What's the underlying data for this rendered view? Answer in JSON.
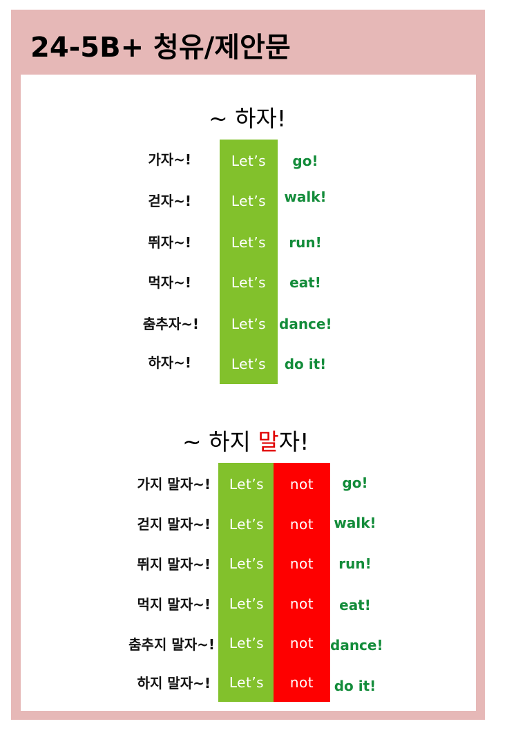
{
  "title": "24-5B+ 청유/제안문",
  "section1": {
    "heading": "~ 하자!",
    "rows": [
      {
        "ko": "가자~!",
        "lets": "Let’s",
        "en": "go!"
      },
      {
        "ko": "걷자~!",
        "lets": "Let’s",
        "en": "walk!"
      },
      {
        "ko": "뛰자~!",
        "lets": "Let’s",
        "en": "run!"
      },
      {
        "ko": "먹자~!",
        "lets": "Let’s",
        "en": "eat!"
      },
      {
        "ko": "춤추자~!",
        "lets": "Let’s",
        "en": "dance!"
      },
      {
        "ko": "하자~!",
        "lets": "Let’s",
        "en": "do it!"
      }
    ]
  },
  "section2": {
    "heading_prefix": "~ 하지 ",
    "heading_red": "말",
    "heading_suffix": "자!",
    "rows": [
      {
        "ko": "가지 말자~!",
        "lets": "Let’s",
        "not": "not",
        "en": "go!"
      },
      {
        "ko": "걷지 말자~!",
        "lets": "Let’s",
        "not": "not",
        "en": "walk!"
      },
      {
        "ko": "뛰지 말자~!",
        "lets": "Let’s",
        "not": "not",
        "en": "run!"
      },
      {
        "ko": "먹지 말자~!",
        "lets": "Let’s",
        "not": "not",
        "en": "eat!"
      },
      {
        "ko": "춤추지 말자~!",
        "lets": "Let’s",
        "not": "not",
        "en": "dance!"
      },
      {
        "ko": "하지 말자~!",
        "lets": "Let’s",
        "not": "not",
        "en": "do it!"
      }
    ]
  },
  "colors": {
    "frame": "#e6b8b7",
    "lets_block": "#82c12c",
    "not_block": "#fe0000",
    "english_text": "#138c3a",
    "highlight": "#e00000"
  }
}
